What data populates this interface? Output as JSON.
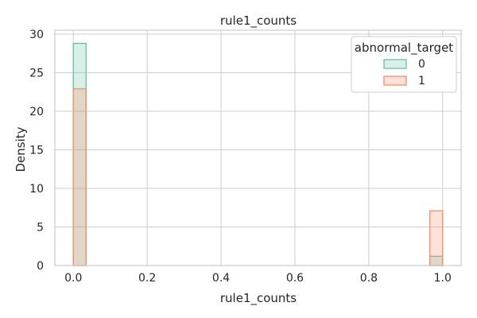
{
  "chart_data": {
    "type": "histogram",
    "title": "rule1_counts",
    "xlabel": "rule1_counts",
    "ylabel": "Density",
    "xlim": [
      -0.05,
      1.05
    ],
    "ylim": [
      0,
      30.5
    ],
    "grid": true,
    "x_ticks": [
      "0.0",
      "0.2",
      "0.4",
      "0.6",
      "0.8",
      "1.0"
    ],
    "y_ticks": [
      "0",
      "5",
      "10",
      "15",
      "20",
      "25",
      "30"
    ],
    "bin_edges": [
      0.0,
      0.0345,
      0.9655,
      1.0
    ],
    "legend": {
      "title": "abnormal_target",
      "placement": "top-right"
    },
    "series": [
      {
        "name": "0",
        "color": "#66c2a5",
        "bins": [
          {
            "x0": 0.0,
            "x1": 0.0345,
            "value": 28.8
          },
          {
            "x0": 0.9655,
            "x1": 1.0,
            "value": 1.2
          }
        ]
      },
      {
        "name": "1",
        "color": "#fc8d62",
        "bins": [
          {
            "x0": 0.0,
            "x1": 0.0345,
            "value": 22.9
          },
          {
            "x0": 0.9655,
            "x1": 1.0,
            "value": 7.1
          }
        ]
      }
    ]
  }
}
